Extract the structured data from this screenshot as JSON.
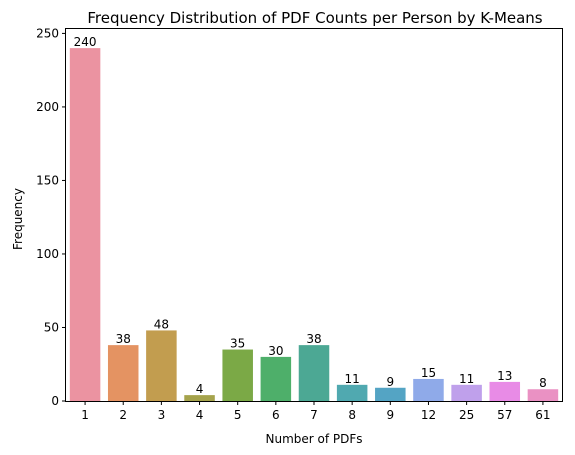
{
  "chart_data": {
    "type": "bar",
    "title": "Frequency Distribution of PDF Counts per Person by K-Means",
    "xlabel": "Number of PDFs",
    "ylabel": "Frequency",
    "categories": [
      "1",
      "2",
      "3",
      "4",
      "5",
      "6",
      "7",
      "8",
      "9",
      "12",
      "25",
      "57",
      "61"
    ],
    "values": [
      240,
      38,
      48,
      4,
      35,
      30,
      38,
      11,
      9,
      15,
      11,
      13,
      8
    ],
    "colors": [
      "#EB93A1",
      "#E49362",
      "#C29D4F",
      "#A5A34C",
      "#7BA946",
      "#4EAF6A",
      "#4CA894",
      "#50A9B0",
      "#54A4C4",
      "#8FAAE9",
      "#BFA0EB",
      "#E88BE6",
      "#EA91C3"
    ],
    "ylim": [
      0,
      253
    ],
    "yticks": [
      0,
      50,
      100,
      150,
      200,
      250
    ],
    "grid": false,
    "legend": "none"
  }
}
